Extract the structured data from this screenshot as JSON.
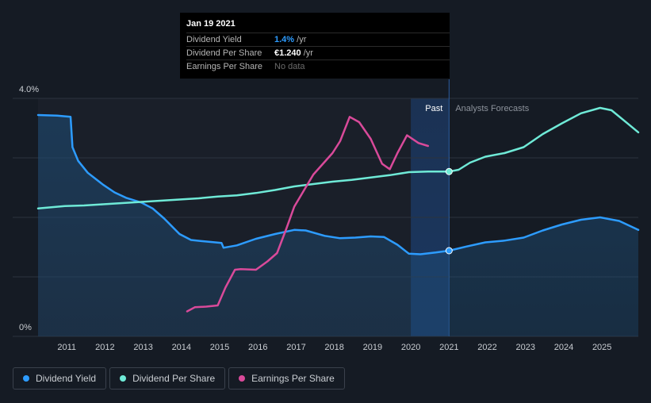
{
  "tooltip": {
    "date": "Jan 19 2021",
    "rows": [
      {
        "label": "Dividend Yield",
        "value": "1.4%",
        "unit": " /yr"
      },
      {
        "label": "Dividend Per Share",
        "value": "€1.240",
        "unit": " /yr"
      },
      {
        "label": "Earnings Per Share",
        "value": "No data",
        "unit": ""
      }
    ]
  },
  "legend": [
    {
      "label": "Dividend Yield",
      "color": "#2d9cff"
    },
    {
      "label": "Dividend Per Share",
      "color": "#6fead7"
    },
    {
      "label": "Earnings Per Share",
      "color": "#d94a9a"
    }
  ],
  "chart_data": {
    "type": "line",
    "title": "",
    "y_tick_labels": [
      "4.0%",
      "0%"
    ],
    "ylim": [
      0,
      4.0
    ],
    "xlim": [
      2010.3,
      2026.0
    ],
    "x_tick_labels": [
      "2011",
      "2012",
      "2013",
      "2014",
      "2015",
      "2016",
      "2017",
      "2018",
      "2019",
      "2020",
      "2021",
      "2022",
      "2023",
      "2024",
      "2025"
    ],
    "x_ticks": [
      2011,
      2012,
      2013,
      2014,
      2015,
      2016,
      2017,
      2018,
      2019,
      2020,
      2021,
      2022,
      2023,
      2024,
      2025
    ],
    "gridlines": [
      1.0,
      2.0,
      3.0,
      4.0
    ],
    "past_label": "Past",
    "forecast_label": "Analysts Forecasts",
    "forecast_start": 2021.05,
    "past_band_start": 2020.05,
    "series": [
      {
        "name": "Dividend Yield",
        "color": "#2d9cff",
        "filled": true,
        "points": [
          [
            2010.3,
            3.72
          ],
          [
            2010.8,
            3.71
          ],
          [
            2011.15,
            3.69
          ],
          [
            2011.2,
            3.18
          ],
          [
            2011.35,
            2.95
          ],
          [
            2011.6,
            2.75
          ],
          [
            2012.0,
            2.55
          ],
          [
            2012.3,
            2.42
          ],
          [
            2012.6,
            2.33
          ],
          [
            2013.0,
            2.25
          ],
          [
            2013.3,
            2.15
          ],
          [
            2013.6,
            1.98
          ],
          [
            2014.0,
            1.72
          ],
          [
            2014.3,
            1.62
          ],
          [
            2014.6,
            1.6
          ],
          [
            2015.1,
            1.57
          ],
          [
            2015.15,
            1.49
          ],
          [
            2015.5,
            1.53
          ],
          [
            2016.0,
            1.64
          ],
          [
            2016.5,
            1.72
          ],
          [
            2017.0,
            1.79
          ],
          [
            2017.3,
            1.78
          ],
          [
            2017.8,
            1.69
          ],
          [
            2018.2,
            1.65
          ],
          [
            2018.6,
            1.66
          ],
          [
            2019.0,
            1.68
          ],
          [
            2019.35,
            1.67
          ],
          [
            2019.7,
            1.54
          ],
          [
            2020.0,
            1.39
          ],
          [
            2020.3,
            1.38
          ],
          [
            2020.7,
            1.41
          ],
          [
            2021.05,
            1.44
          ],
          [
            2021.5,
            1.51
          ],
          [
            2022.0,
            1.58
          ],
          [
            2022.5,
            1.61
          ],
          [
            2023.0,
            1.66
          ],
          [
            2023.5,
            1.78
          ],
          [
            2024.0,
            1.88
          ],
          [
            2024.5,
            1.96
          ],
          [
            2025.0,
            2.0
          ],
          [
            2025.5,
            1.94
          ],
          [
            2026.0,
            1.79
          ]
        ]
      },
      {
        "name": "Dividend Per Share",
        "color": "#6fead7",
        "filled": false,
        "points": [
          [
            2010.3,
            2.15
          ],
          [
            2011.0,
            2.19
          ],
          [
            2011.5,
            2.2
          ],
          [
            2012.0,
            2.22
          ],
          [
            2012.5,
            2.24
          ],
          [
            2013.0,
            2.26
          ],
          [
            2013.5,
            2.28
          ],
          [
            2014.0,
            2.3
          ],
          [
            2014.5,
            2.32
          ],
          [
            2015.0,
            2.35
          ],
          [
            2015.5,
            2.37
          ],
          [
            2016.0,
            2.41
          ],
          [
            2016.5,
            2.46
          ],
          [
            2017.0,
            2.52
          ],
          [
            2017.5,
            2.56
          ],
          [
            2018.0,
            2.6
          ],
          [
            2018.5,
            2.63
          ],
          [
            2019.0,
            2.67
          ],
          [
            2019.5,
            2.71
          ],
          [
            2020.0,
            2.76
          ],
          [
            2020.5,
            2.77
          ],
          [
            2021.05,
            2.77
          ],
          [
            2021.3,
            2.8
          ],
          [
            2021.6,
            2.92
          ],
          [
            2022.0,
            3.02
          ],
          [
            2022.5,
            3.08
          ],
          [
            2023.0,
            3.18
          ],
          [
            2023.5,
            3.4
          ],
          [
            2024.0,
            3.58
          ],
          [
            2024.5,
            3.75
          ],
          [
            2025.0,
            3.84
          ],
          [
            2025.3,
            3.8
          ],
          [
            2025.7,
            3.59
          ],
          [
            2026.0,
            3.43
          ]
        ]
      },
      {
        "name": "Earnings Per Share",
        "color": "#d94a9a",
        "filled": false,
        "points": [
          [
            2014.2,
            0.42
          ],
          [
            2014.4,
            0.49
          ],
          [
            2014.7,
            0.5
          ],
          [
            2015.0,
            0.52
          ],
          [
            2015.2,
            0.82
          ],
          [
            2015.45,
            1.12
          ],
          [
            2015.6,
            1.13
          ],
          [
            2016.0,
            1.12
          ],
          [
            2016.3,
            1.26
          ],
          [
            2016.55,
            1.4
          ],
          [
            2016.8,
            1.82
          ],
          [
            2017.0,
            2.18
          ],
          [
            2017.5,
            2.72
          ],
          [
            2018.0,
            3.08
          ],
          [
            2018.2,
            3.28
          ],
          [
            2018.45,
            3.69
          ],
          [
            2018.7,
            3.6
          ],
          [
            2019.0,
            3.32
          ],
          [
            2019.3,
            2.9
          ],
          [
            2019.5,
            2.81
          ],
          [
            2019.7,
            3.08
          ],
          [
            2019.95,
            3.38
          ],
          [
            2020.25,
            3.25
          ],
          [
            2020.5,
            3.2
          ]
        ]
      }
    ]
  }
}
